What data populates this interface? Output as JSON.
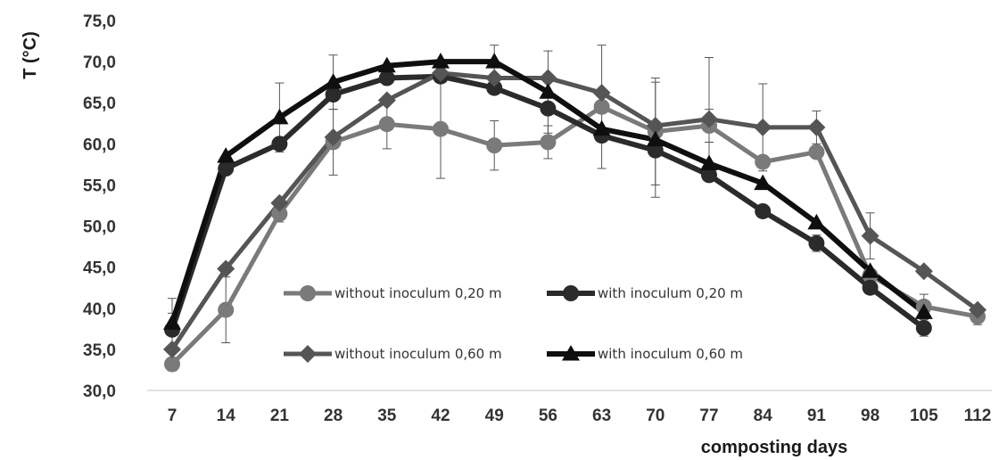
{
  "chart_data": {
    "type": "line",
    "xlabel": "composting days",
    "ylabel": "T (°C)",
    "x": [
      7,
      14,
      21,
      28,
      35,
      42,
      49,
      56,
      63,
      70,
      77,
      84,
      91,
      98,
      105,
      112
    ],
    "y_ticks": [
      "30,0",
      "35,0",
      "40,0",
      "45,0",
      "50,0",
      "55,0",
      "60,0",
      "65,0",
      "70,0",
      "75,0"
    ],
    "ylim": [
      30,
      75
    ],
    "grid": false,
    "legend_placement": "center-bottom, inside plot",
    "series": [
      {
        "name": "without inoculum 0,20 m",
        "marker": "circle",
        "color": "#7a7a7a",
        "values": [
          33.2,
          39.8,
          51.5,
          60.2,
          62.4,
          61.8,
          59.8,
          60.2,
          64.5,
          61.5,
          62.2,
          57.8,
          59.0,
          44.0,
          40.2,
          39.0
        ],
        "err": [
          0.8,
          4.0,
          1.0,
          4.0,
          3.0,
          6.0,
          3.0,
          2.0,
          7.5,
          6.5,
          2.0,
          0,
          0,
          0,
          1.5,
          1.0
        ]
      },
      {
        "name": "with inoculum 0,20 m",
        "marker": "circle",
        "color": "#2b2b2b",
        "values": [
          37.4,
          57.0,
          60.0,
          66.0,
          68.0,
          68.2,
          66.8,
          64.3,
          61.0,
          59.2,
          56.2,
          51.8,
          47.9,
          42.5,
          37.6,
          null
        ],
        "err": [
          2.0,
          0,
          0,
          0,
          0,
          0,
          0,
          0,
          0,
          0,
          0,
          0,
          1.0,
          0,
          1.0,
          0
        ]
      },
      {
        "name": "without inoculum 0,60 m",
        "marker": "diamond",
        "color": "#555555",
        "values": [
          35.0,
          44.8,
          52.8,
          60.8,
          65.3,
          68.6,
          68.0,
          68.0,
          66.2,
          62.2,
          63.0,
          62.0,
          62.0,
          48.8,
          44.5,
          39.8
        ],
        "err": [
          0,
          0,
          0,
          0,
          0,
          0,
          0,
          0,
          0,
          0,
          7.5,
          5.3,
          2.0,
          2.8,
          0,
          0
        ]
      },
      {
        "name": "with inoculum 0,60 m",
        "marker": "triangle",
        "color": "#0f0f0f",
        "values": [
          38.2,
          58.5,
          63.2,
          67.5,
          69.5,
          70.0,
          70.0,
          66.3,
          61.8,
          60.5,
          57.6,
          55.2,
          50.4,
          44.5,
          39.5,
          null
        ],
        "err": [
          3.0,
          0,
          4.2,
          3.3,
          0,
          0,
          2.0,
          5.0,
          0,
          7.0,
          0,
          0,
          0,
          0,
          0,
          0
        ]
      }
    ]
  }
}
